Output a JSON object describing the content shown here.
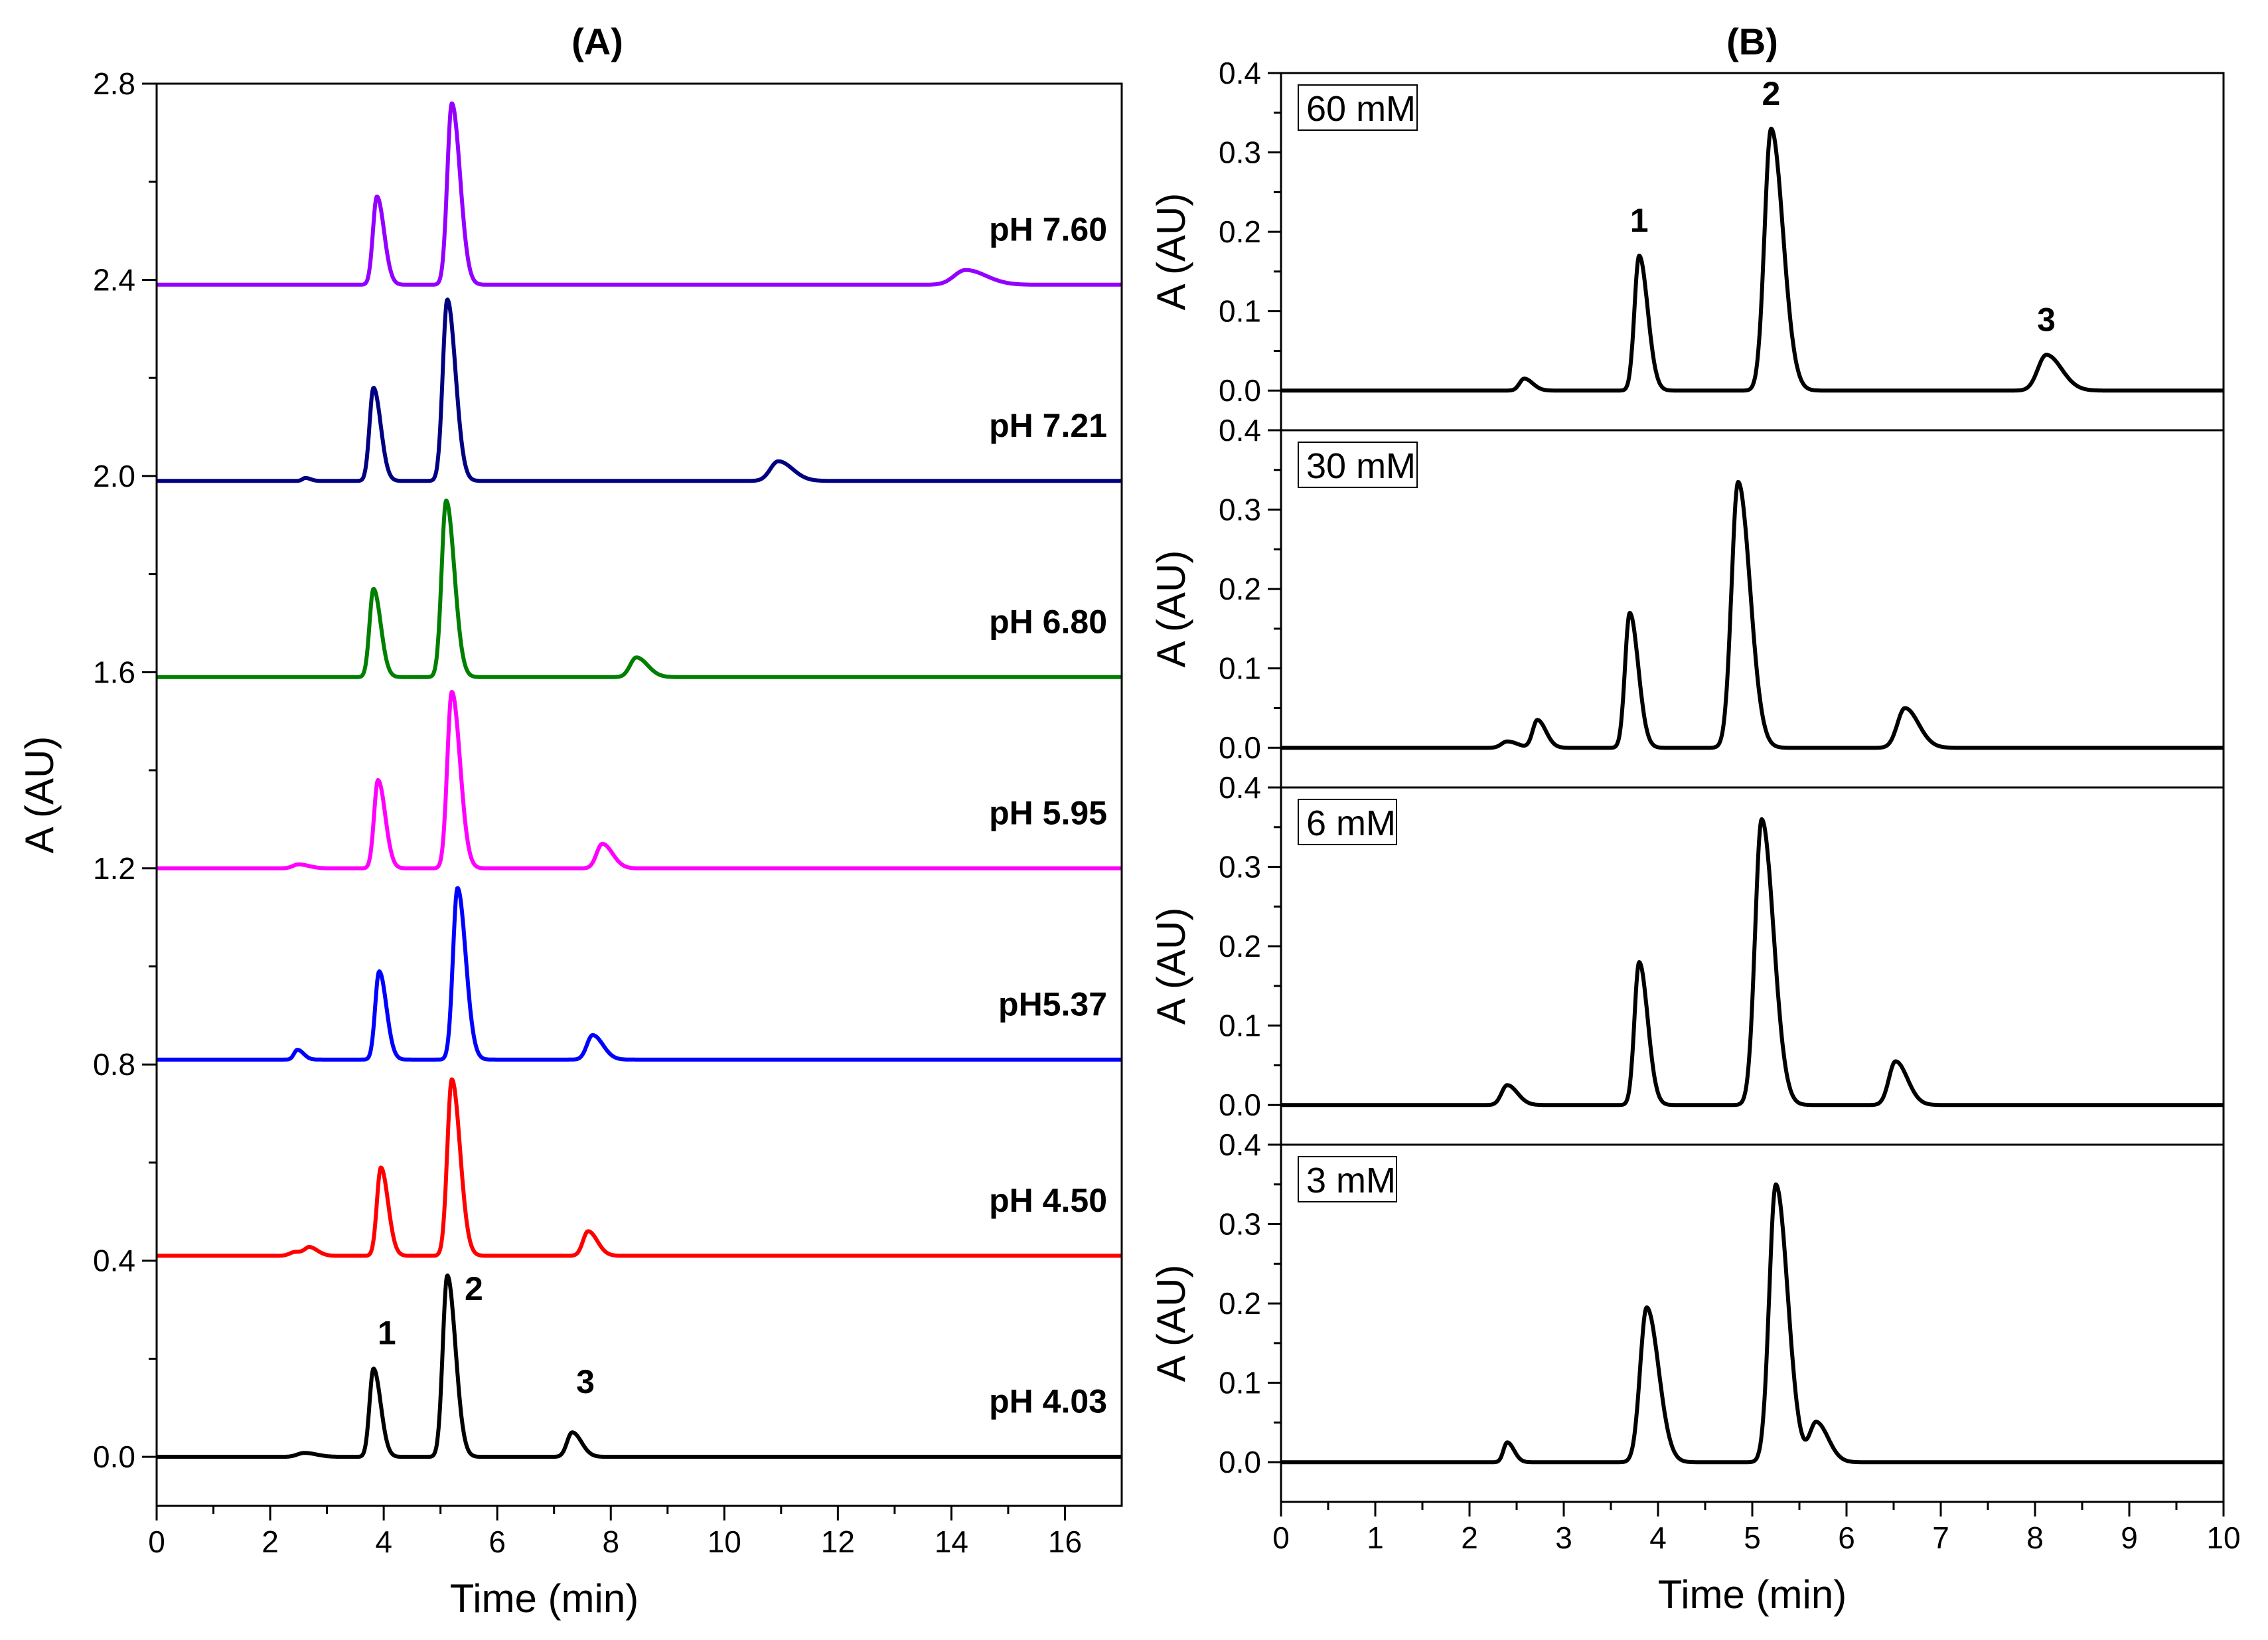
{
  "chart_data": [
    {
      "type": "line",
      "title": "(A)",
      "xlabel": "Time (min)",
      "ylabel": "A (AU)",
      "xlim": [
        0,
        17
      ],
      "ylim": [
        -0.1,
        2.8
      ],
      "x_ticks": [
        "0",
        "2",
        "4",
        "6",
        "8",
        "10",
        "12",
        "14",
        "16"
      ],
      "y_ticks": [
        "0.0",
        "0.4",
        "0.8",
        "1.2",
        "1.6",
        "2.0",
        "2.4",
        "2.8"
      ],
      "series": [
        {
          "name": "pH 4.03",
          "label": "pH 4.03",
          "color": "#000000",
          "baseline": 0.0,
          "peaks": [
            {
              "t": 2.6,
              "h": 0.008,
              "w": 0.12
            },
            {
              "t": 3.82,
              "h": 0.18,
              "w": 0.07
            },
            {
              "t": 5.12,
              "h": 0.37,
              "w": 0.08
            },
            {
              "t": 7.32,
              "h": 0.05,
              "w": 0.09
            }
          ]
        },
        {
          "name": "pH 4.50",
          "label": "pH 4.50",
          "color": "#ff0000",
          "baseline": 0.41,
          "peaks": [
            {
              "t": 2.45,
              "h": 0.008,
              "w": 0.1
            },
            {
              "t": 2.7,
              "h": 0.015,
              "w": 0.08
            },
            {
              "t": 3.95,
              "h": 0.18,
              "w": 0.07
            },
            {
              "t": 5.2,
              "h": 0.36,
              "w": 0.08
            },
            {
              "t": 7.6,
              "h": 0.05,
              "w": 0.09
            }
          ]
        },
        {
          "name": "pH5.37",
          "label": "pH5.37",
          "color": "#0000ff",
          "baseline": 0.81,
          "peaks": [
            {
              "t": 2.48,
              "h": 0.02,
              "w": 0.06
            },
            {
              "t": 3.92,
              "h": 0.18,
              "w": 0.07
            },
            {
              "t": 5.3,
              "h": 0.35,
              "w": 0.08
            },
            {
              "t": 7.68,
              "h": 0.05,
              "w": 0.1
            }
          ]
        },
        {
          "name": "pH 5.95",
          "label": "pH 5.95",
          "color": "#ff00ff",
          "baseline": 1.2,
          "peaks": [
            {
              "t": 2.5,
              "h": 0.008,
              "w": 0.1
            },
            {
              "t": 3.9,
              "h": 0.18,
              "w": 0.07
            },
            {
              "t": 5.2,
              "h": 0.36,
              "w": 0.08
            },
            {
              "t": 7.85,
              "h": 0.05,
              "w": 0.1
            }
          ]
        },
        {
          "name": "pH 6.80",
          "label": "pH 6.80",
          "color": "#007f00",
          "baseline": 1.59,
          "peaks": [
            {
              "t": 3.82,
              "h": 0.18,
              "w": 0.07
            },
            {
              "t": 5.1,
              "h": 0.36,
              "w": 0.08
            },
            {
              "t": 8.45,
              "h": 0.04,
              "w": 0.11
            }
          ]
        },
        {
          "name": "pH 7.21",
          "label": "pH 7.21",
          "color": "#000080",
          "baseline": 1.99,
          "peaks": [
            {
              "t": 2.62,
              "h": 0.006,
              "w": 0.05
            },
            {
              "t": 3.82,
              "h": 0.19,
              "w": 0.07
            },
            {
              "t": 5.12,
              "h": 0.37,
              "w": 0.08
            },
            {
              "t": 10.95,
              "h": 0.04,
              "w": 0.14
            }
          ]
        },
        {
          "name": "pH 7.60",
          "label": "pH 7.60",
          "color": "#9400ff",
          "baseline": 2.39,
          "peaks": [
            {
              "t": 3.88,
              "h": 0.18,
              "w": 0.07
            },
            {
              "t": 5.2,
              "h": 0.37,
              "w": 0.08
            },
            {
              "t": 14.25,
              "h": 0.03,
              "w": 0.2
            }
          ]
        }
      ],
      "peak_labels": [
        {
          "text": "1",
          "t": 3.82,
          "y": 0.23
        },
        {
          "text": "2",
          "t": 5.12,
          "y": 0.32
        },
        {
          "text": "3",
          "t": 7.32,
          "y": 0.13
        }
      ]
    },
    {
      "type": "line",
      "title": "(B)",
      "xlabel": "Time (min)",
      "ylabel": "A (AU)",
      "xlim": [
        0,
        10
      ],
      "ylim": [
        -0.05,
        0.4
      ],
      "x_ticks": [
        "0",
        "1",
        "2",
        "3",
        "4",
        "5",
        "6",
        "7",
        "8",
        "9",
        "10"
      ],
      "y_ticks": [
        "0.0",
        "0.1",
        "0.2",
        "0.3",
        "0.4"
      ],
      "panels": [
        {
          "label": "60 mM",
          "color": "#000000",
          "peaks": [
            {
              "t": 2.58,
              "h": 0.015,
              "w": 0.05
            },
            {
              "t": 3.8,
              "h": 0.17,
              "w": 0.05
            },
            {
              "t": 5.2,
              "h": 0.33,
              "w": 0.07
            },
            {
              "t": 8.12,
              "h": 0.045,
              "w": 0.09
            }
          ],
          "peak_labels": [
            {
              "text": "1",
              "t": 3.8,
              "y": 0.2
            },
            {
              "text": "2",
              "t": 5.2,
              "y": 0.36
            },
            {
              "text": "3",
              "t": 8.12,
              "y": 0.075
            }
          ]
        },
        {
          "label": "30 mM",
          "color": "#000000",
          "peaks": [
            {
              "t": 2.4,
              "h": 0.008,
              "w": 0.06
            },
            {
              "t": 2.72,
              "h": 0.035,
              "w": 0.05
            },
            {
              "t": 3.7,
              "h": 0.17,
              "w": 0.05
            },
            {
              "t": 4.85,
              "h": 0.335,
              "w": 0.07
            },
            {
              "t": 6.62,
              "h": 0.05,
              "w": 0.08
            }
          ],
          "peak_labels": []
        },
        {
          "label": "6 mM",
          "color": "#000000",
          "peaks": [
            {
              "t": 2.4,
              "h": 0.025,
              "w": 0.06
            },
            {
              "t": 3.8,
              "h": 0.18,
              "w": 0.05
            },
            {
              "t": 5.1,
              "h": 0.36,
              "w": 0.07
            },
            {
              "t": 6.52,
              "h": 0.055,
              "w": 0.07
            }
          ],
          "peak_labels": []
        },
        {
          "label": "3 mM",
          "color": "#000000",
          "peaks": [
            {
              "t": 2.4,
              "h": 0.025,
              "w": 0.04
            },
            {
              "t": 3.88,
              "h": 0.195,
              "w": 0.07
            },
            {
              "t": 5.25,
              "h": 0.35,
              "w": 0.07
            },
            {
              "t": 5.68,
              "h": 0.05,
              "w": 0.07
            }
          ],
          "peak_labels": []
        }
      ]
    }
  ]
}
